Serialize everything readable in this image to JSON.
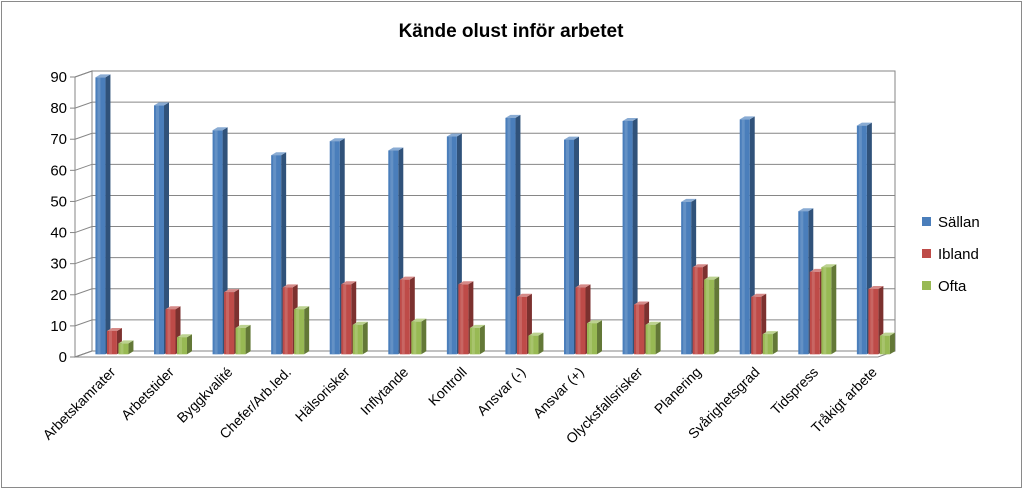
{
  "chart_data": {
    "type": "bar",
    "title": "Kände olust inför arbetet",
    "xlabel": "",
    "ylabel": "",
    "ylim": [
      0,
      90
    ],
    "yticks": [
      0,
      10,
      20,
      30,
      40,
      50,
      60,
      70,
      80,
      90
    ],
    "grid": true,
    "legend": "right",
    "categories": [
      "Arbetskamrater",
      "Arbetstider",
      "Byggkvalité",
      "Chefer/Arb.led.",
      "Hälsorisker",
      "Inflytande",
      "Kontroll",
      "Ansvar (-)",
      "Ansvar (+)",
      "Olycksfallsrisker",
      "Planering",
      "Svårighetsgrad",
      "Tidspress",
      "Tråkigt arbete"
    ],
    "series": [
      {
        "name": "Sällan",
        "color": "#4a7ebb",
        "values": [
          89,
          80,
          72,
          64,
          68.5,
          65.5,
          70,
          76,
          69,
          75,
          49,
          75.5,
          46,
          73.5
        ]
      },
      {
        "name": "Ibland",
        "color": "#be4b48",
        "values": [
          7.5,
          14.5,
          20,
          21.5,
          22.5,
          24,
          22.5,
          18.5,
          21.5,
          16,
          28,
          18.5,
          26.5,
          21
        ]
      },
      {
        "name": "Ofta",
        "color": "#98b954",
        "values": [
          3.5,
          5.5,
          8.5,
          14.5,
          9.5,
          10.5,
          8.5,
          6,
          10,
          9.5,
          24,
          6.5,
          28,
          6
        ]
      }
    ]
  }
}
